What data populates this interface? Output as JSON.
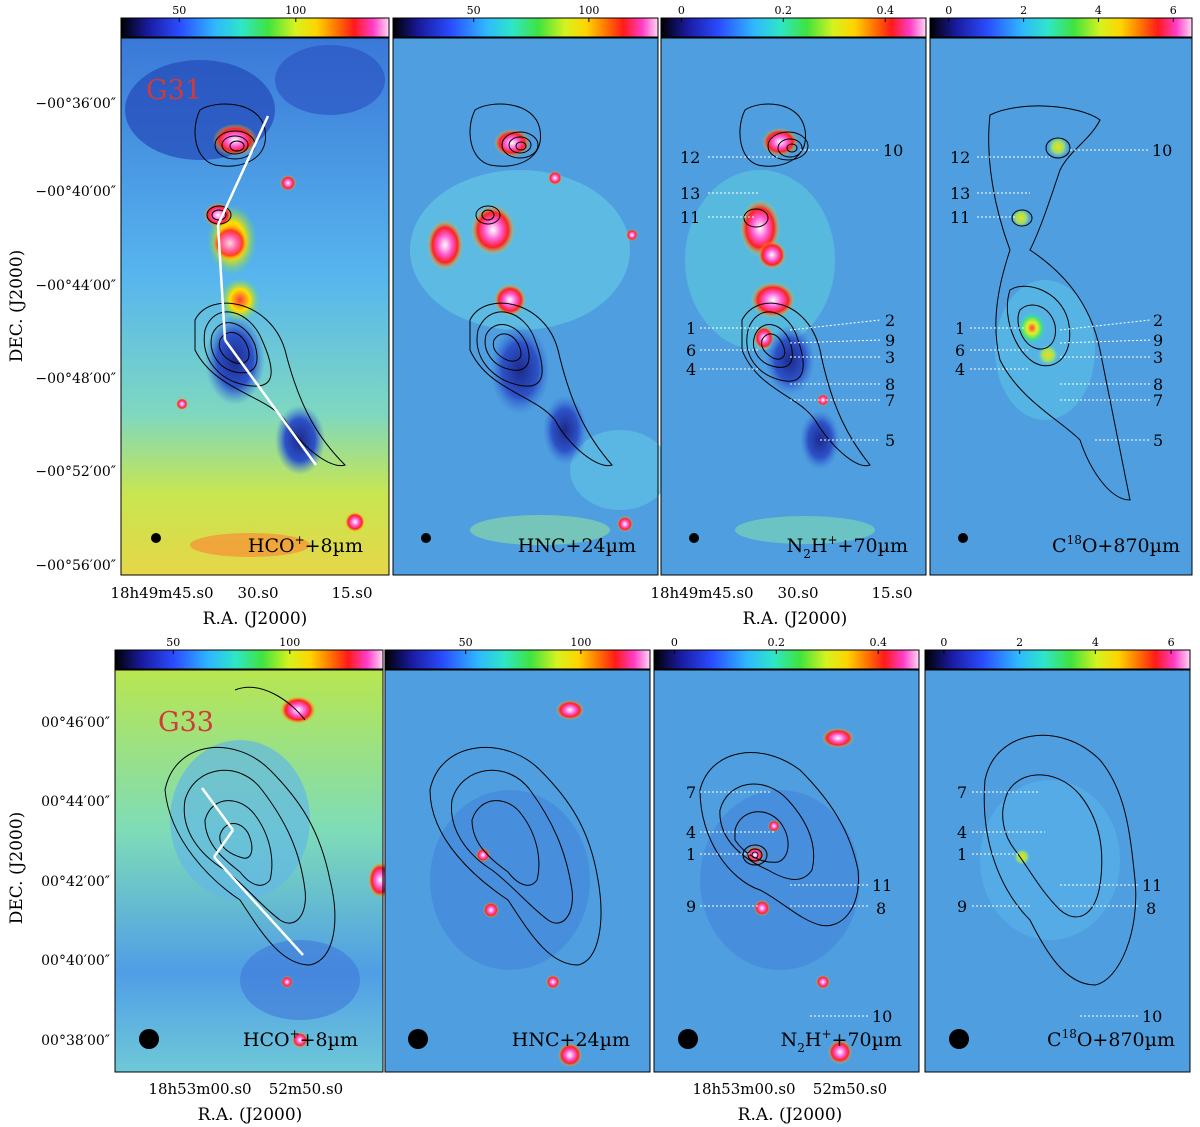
{
  "figure": {
    "rows": [
      {
        "region_label": "G31",
        "colorbars": [
          {
            "ticks": [
              "50",
              "100"
            ],
            "tick_values": [
              50,
              100
            ],
            "range": [
              25,
              140
            ]
          },
          {
            "ticks": [
              "50",
              "100"
            ],
            "tick_values": [
              50,
              100
            ],
            "range": [
              15,
              130
            ]
          },
          {
            "ticks": [
              "0",
              "0.2",
              "0.4"
            ],
            "tick_values": [
              0,
              0.2,
              0.4
            ],
            "range": [
              -0.04,
              0.48
            ]
          },
          {
            "ticks": [
              "0",
              "2",
              "4",
              "6"
            ],
            "tick_values": [
              0,
              2,
              4,
              6
            ],
            "range": [
              -0.5,
              6.5
            ]
          }
        ],
        "ylabel": "DEC. (J2000)",
        "dec_ticks": [
          "−00°36′00″",
          "−00°40′00″",
          "−00°44′00″",
          "−00°48′00″",
          "−00°52′00″",
          "−00°56′00″"
        ],
        "ra_ticks": [
          "18h49m45.s0",
          "30.s0",
          "15.s0"
        ],
        "xlabel": "R.A. (J2000)",
        "panels": [
          {
            "map": "HCO+ +8µm",
            "label_a": "HCO",
            "label_sup": "+",
            "label_b": "+8µm"
          },
          {
            "map": "HNC+24µm",
            "label_a": "HNC+24µm",
            "label_sup": "",
            "label_b": ""
          },
          {
            "map": "N2H+ +70µm",
            "label_a": "N",
            "label_sub": "2",
            "label_b": "H",
            "label_sup": "+",
            "label_c": "+70µm"
          },
          {
            "map": "C18O+870µm",
            "label_a": "C",
            "label_sup": "18",
            "label_b": "O+870µm"
          }
        ],
        "clump_labels_left": [
          "12",
          "13",
          "11",
          "1",
          "6",
          "4"
        ],
        "clump_labels_right": [
          "10",
          "2",
          "9",
          "3",
          "8",
          "7",
          "5"
        ]
      },
      {
        "region_label": "G33",
        "colorbars": [
          {
            "ticks": [
              "50",
              "100"
            ],
            "tick_values": [
              50,
              100
            ],
            "range": [
              25,
              140
            ]
          },
          {
            "ticks": [
              "50",
              "100"
            ],
            "tick_values": [
              50,
              100
            ],
            "range": [
              15,
              130
            ]
          },
          {
            "ticks": [
              "0",
              "0.2",
              "0.4"
            ],
            "tick_values": [
              0,
              0.2,
              0.4
            ],
            "range": [
              -0.04,
              0.48
            ]
          },
          {
            "ticks": [
              "0",
              "2",
              "4",
              "6"
            ],
            "tick_values": [
              0,
              2,
              4,
              6
            ],
            "range": [
              -0.5,
              6.5
            ]
          }
        ],
        "ylabel": "DEC. (J2000)",
        "dec_ticks": [
          "00°46′00″",
          "00°44′00″",
          "00°42′00″",
          "00°40′00″",
          "00°38′00″"
        ],
        "ra_ticks": [
          "18h53m00.s0",
          "52m50.s0"
        ],
        "xlabel": "R.A. (J2000)",
        "panels": [
          {
            "map": "HCO+ +8µm"
          },
          {
            "map": "HNC+24µm"
          },
          {
            "map": "N2H+ +70µm"
          },
          {
            "map": "C18O+870µm"
          }
        ],
        "clump_labels_left": [
          "7",
          "4",
          "1",
          "9"
        ],
        "clump_labels_right": [
          "11",
          "8",
          "10"
        ]
      }
    ]
  },
  "colors": {
    "background_blue": "#4f9fe0",
    "contour": "#000000",
    "region_label": "#d23a3a",
    "filament_line": "#ffffff",
    "marker_line": "#ffffff"
  }
}
